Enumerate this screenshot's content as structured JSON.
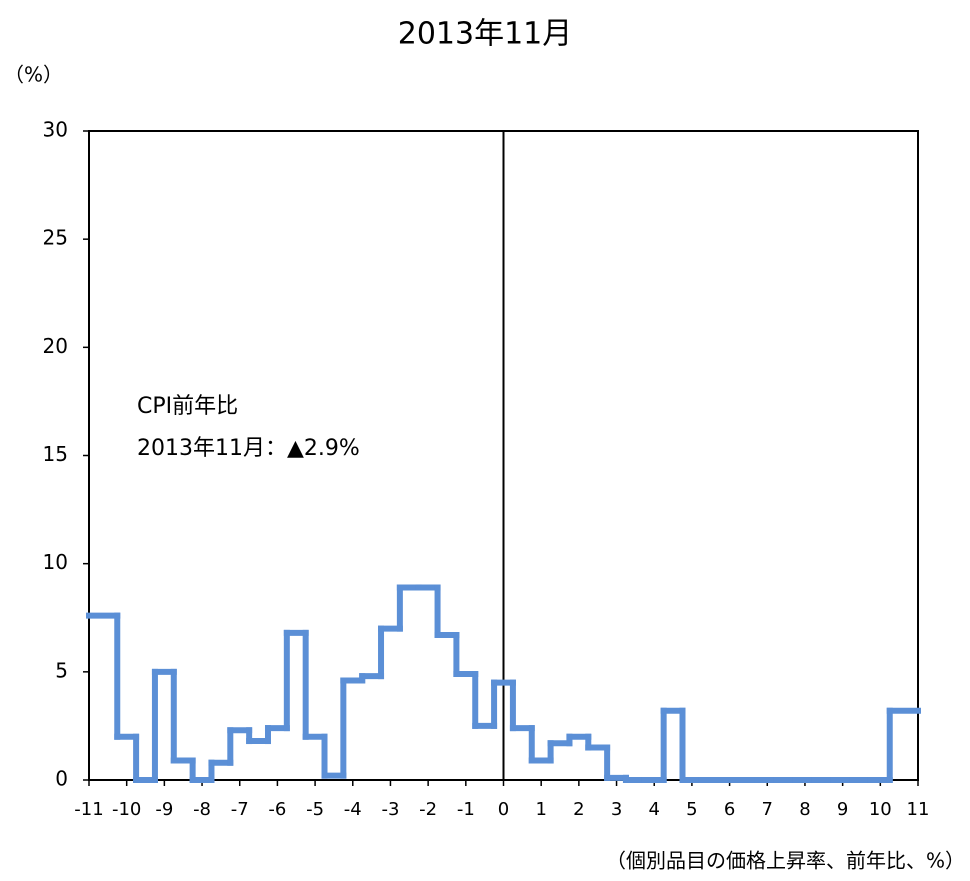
{
  "chart_data": {
    "type": "histogram",
    "title": "2013年11月",
    "y_label": "（%）",
    "x_label": "（個別品目の価格上昇率、前年比、%）",
    "annotations": [
      "CPI前年比",
      "2013年11月：▲2.9%"
    ],
    "bins": [
      -11,
      -10.25,
      -9.75,
      -9.25,
      -8.75,
      -8.25,
      -7.75,
      -7.25,
      -6.75,
      -6.25,
      -5.75,
      -5.25,
      -4.75,
      -4.25,
      -3.75,
      -3.25,
      -2.75,
      -2.25,
      -1.75,
      -1.25,
      -0.75,
      -0.25,
      0.25,
      0.75,
      1.25,
      1.75,
      2.25,
      2.75,
      3.25,
      3.75,
      4.25,
      4.75,
      5.25,
      5.75,
      6.25,
      6.75,
      7.25,
      7.75,
      8.25,
      8.75,
      9.25,
      9.75,
      10.25,
      11
    ],
    "values": [
      7.6,
      2.0,
      0,
      5.0,
      0.9,
      0,
      0.8,
      2.3,
      1.8,
      2.4,
      6.8,
      2.0,
      0.2,
      4.6,
      4.8,
      7.0,
      8.9,
      8.9,
      6.7,
      4.9,
      2.5,
      4.5,
      2.4,
      0.9,
      1.7,
      2.0,
      1.5,
      0.1,
      0,
      0,
      3.2,
      0,
      0,
      0,
      0,
      0,
      0,
      0,
      0,
      0,
      0,
      0,
      3.2
    ],
    "color": "#5b8fd6",
    "xlim": [
      -11,
      11
    ],
    "xticks": [
      -11,
      -10,
      -9,
      -8,
      -7,
      -6,
      -5,
      -4,
      -3,
      -2,
      -1,
      0,
      1,
      2,
      3,
      4,
      5,
      6,
      7,
      8,
      9,
      10,
      11
    ],
    "ylim": [
      0,
      30
    ],
    "yticks": [
      0,
      5,
      10,
      15,
      20,
      25,
      30
    ],
    "reference_line_x": 0
  }
}
